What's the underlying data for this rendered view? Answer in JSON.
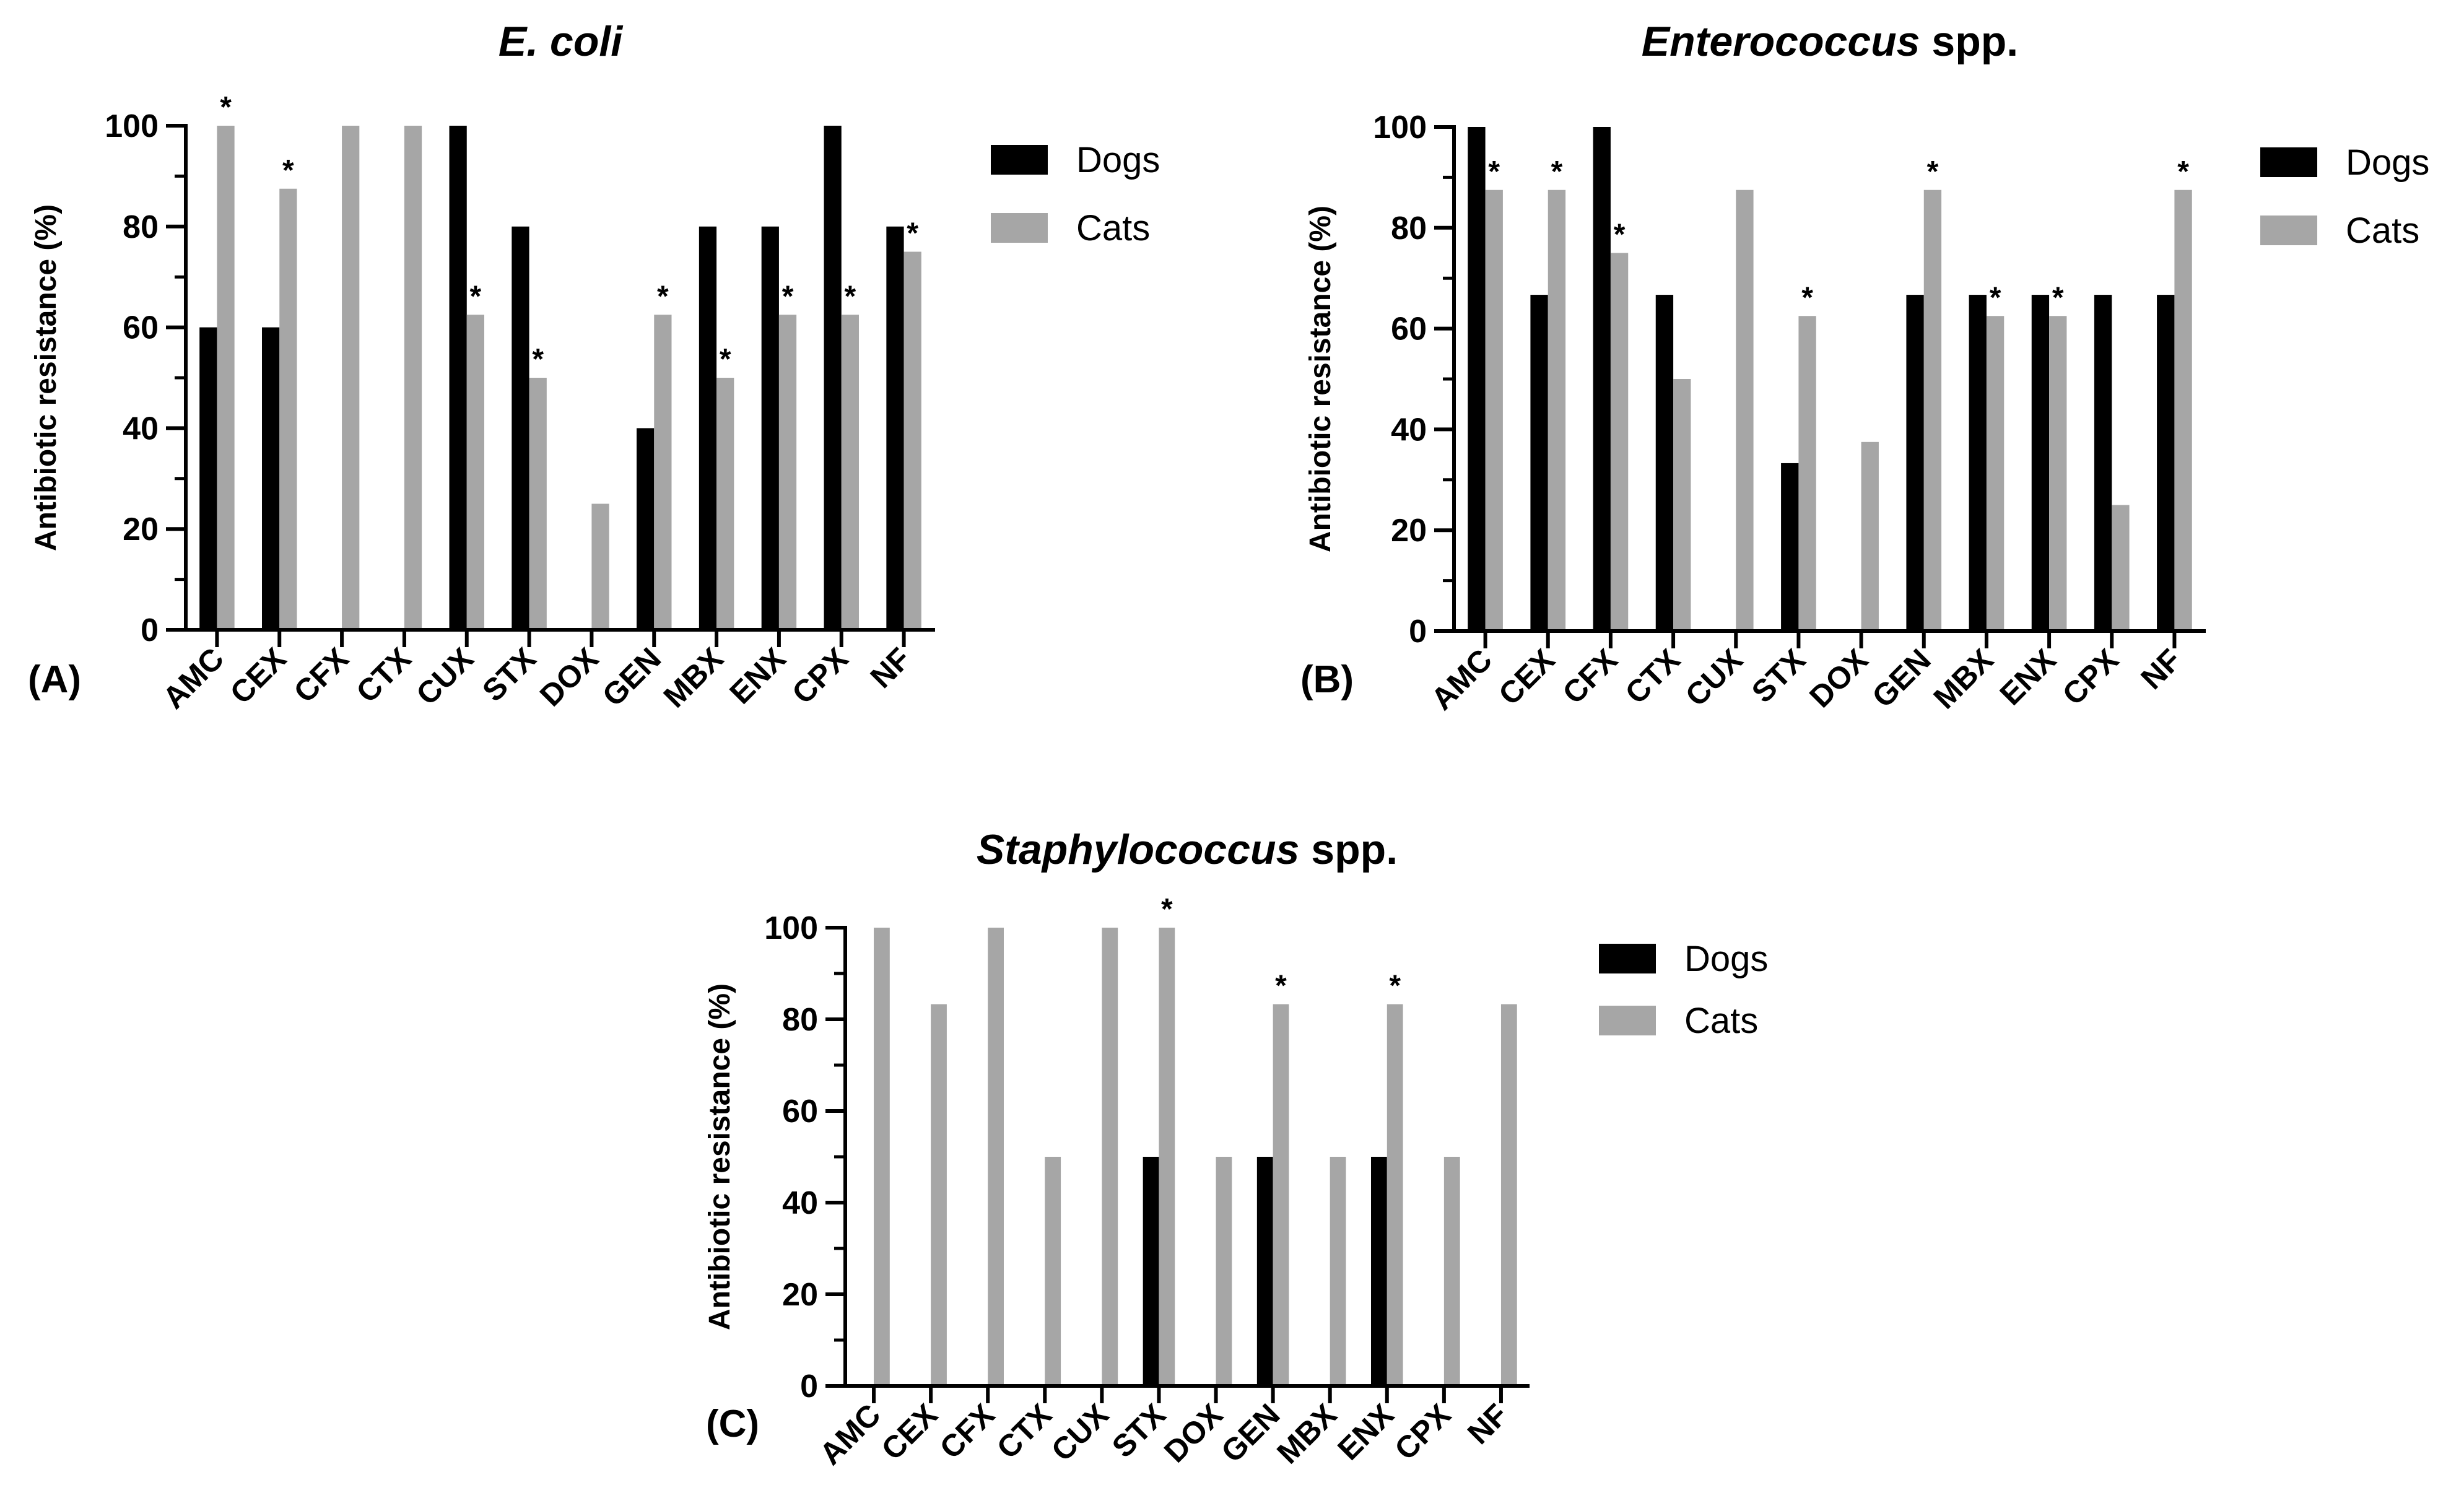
{
  "chart_data": [
    {
      "type": "bar",
      "panel_label": "(A)",
      "title": "E. coli",
      "title_italic": "E. coli",
      "title_plain": "",
      "ylabel": "Antibiotic resistance (%)",
      "xlabel": "",
      "ylim": [
        0,
        100
      ],
      "yticks": [
        "0",
        "20",
        "40",
        "60",
        "80",
        "100"
      ],
      "categories": [
        "AMC",
        "CEX",
        "CFX",
        "CTX",
        "CUX",
        "STX",
        "DOX",
        "GEN",
        "MBX",
        "ENX",
        "CPX",
        "NF"
      ],
      "series": [
        {
          "name": "Dogs",
          "color": "#000000",
          "values": [
            60,
            60,
            0,
            0,
            100,
            80,
            0,
            40,
            80,
            80,
            100,
            80
          ]
        },
        {
          "name": "Cats",
          "color": "#a6a6a6",
          "values": [
            100,
            87.5,
            100,
            100,
            62.5,
            50,
            25,
            62.5,
            50,
            62.5,
            62.5,
            75
          ]
        }
      ],
      "significance_marker": "*",
      "significant": [
        true,
        true,
        false,
        false,
        true,
        true,
        false,
        true,
        true,
        true,
        true,
        true
      ],
      "legend_position": "right"
    },
    {
      "type": "bar",
      "panel_label": "(B)",
      "title": "Enterococcus spp.",
      "title_italic": "Enterococcus",
      "title_plain": " spp.",
      "ylabel": "Antibiotic resistance (%)",
      "xlabel": "",
      "ylim": [
        0,
        100
      ],
      "yticks": [
        "0",
        "20",
        "40",
        "60",
        "80",
        "100"
      ],
      "categories": [
        "AMC",
        "CEX",
        "CFX",
        "CTX",
        "CUX",
        "STX",
        "DOX",
        "GEN",
        "MBX",
        "ENX",
        "CPX",
        "NF"
      ],
      "series": [
        {
          "name": "Dogs",
          "color": "#000000",
          "values": [
            100,
            66.7,
            100,
            66.7,
            0,
            33.3,
            0,
            66.7,
            66.7,
            66.7,
            66.7,
            66.7
          ]
        },
        {
          "name": "Cats",
          "color": "#a6a6a6",
          "values": [
            87.5,
            87.5,
            75,
            50,
            87.5,
            62.5,
            37.5,
            87.5,
            62.5,
            62.5,
            25,
            87.5
          ]
        }
      ],
      "significance_marker": "*",
      "significant": [
        true,
        true,
        true,
        false,
        false,
        true,
        false,
        true,
        true,
        true,
        false,
        true
      ],
      "legend_position": "right"
    },
    {
      "type": "bar",
      "panel_label": "(C)",
      "title": "Staphylococcus spp.",
      "title_italic": "Staphylococcus",
      "title_plain": " spp.",
      "ylabel": "Antibiotic resistance (%)",
      "xlabel": "",
      "ylim": [
        0,
        100
      ],
      "yticks": [
        "0",
        "20",
        "40",
        "60",
        "80",
        "100"
      ],
      "categories": [
        "AMC",
        "CEX",
        "CFX",
        "CTX",
        "CUX",
        "STX",
        "DOX",
        "GEN",
        "MBX",
        "ENX",
        "CPX",
        "NF"
      ],
      "series": [
        {
          "name": "Dogs",
          "color": "#000000",
          "values": [
            0,
            0,
            0,
            0,
            0,
            50,
            0,
            50,
            0,
            50,
            0,
            0
          ]
        },
        {
          "name": "Cats",
          "color": "#a6a6a6",
          "values": [
            100,
            83.3,
            100,
            50,
            100,
            100,
            50,
            83.3,
            50,
            83.3,
            50,
            83.3
          ]
        }
      ],
      "significance_marker": "*",
      "significant": [
        false,
        false,
        false,
        false,
        false,
        true,
        false,
        true,
        false,
        true,
        false,
        false
      ],
      "legend_position": "right"
    }
  ]
}
